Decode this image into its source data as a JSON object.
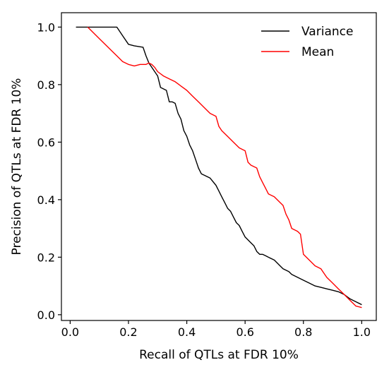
{
  "chart_data": {
    "type": "line",
    "title": "",
    "xlabel": "Recall of QTLs at FDR 10%",
    "ylabel": "Precision of QTLs at FDR 10%",
    "xlim": [
      -0.03,
      1.05
    ],
    "ylim": [
      -0.02,
      1.05
    ],
    "x_ticks": [
      0.0,
      0.2,
      0.4,
      0.6,
      0.8,
      1.0
    ],
    "y_ticks": [
      0.0,
      0.2,
      0.4,
      0.6,
      0.8,
      1.0
    ],
    "x_tick_labels": [
      "0.0",
      "0.2",
      "0.4",
      "0.6",
      "0.8",
      "1.0"
    ],
    "y_tick_labels": [
      "0.0",
      "0.2",
      "0.4",
      "0.6",
      "0.8",
      "1.0"
    ],
    "grid": false,
    "legend_position": "top-right",
    "series": [
      {
        "name": "Variance",
        "color": "#000000",
        "x": [
          0.02,
          0.16,
          0.18,
          0.2,
          0.22,
          0.25,
          0.26,
          0.27,
          0.28,
          0.3,
          0.31,
          0.33,
          0.34,
          0.35,
          0.36,
          0.37,
          0.38,
          0.39,
          0.4,
          0.41,
          0.42,
          0.43,
          0.44,
          0.45,
          0.46,
          0.47,
          0.48,
          0.5,
          0.51,
          0.52,
          0.53,
          0.54,
          0.55,
          0.56,
          0.57,
          0.58,
          0.59,
          0.6,
          0.61,
          0.62,
          0.63,
          0.64,
          0.65,
          0.66,
          0.67,
          0.68,
          0.7,
          0.71,
          0.72,
          0.73,
          0.74,
          0.75,
          0.76,
          0.78,
          0.8,
          0.82,
          0.84,
          0.86,
          0.88,
          0.9,
          0.92,
          0.94,
          0.96,
          0.98,
          1.0
        ],
        "y": [
          1.0,
          1.0,
          0.97,
          0.94,
          0.935,
          0.93,
          0.9,
          0.875,
          0.86,
          0.83,
          0.79,
          0.78,
          0.74,
          0.74,
          0.735,
          0.7,
          0.68,
          0.64,
          0.62,
          0.59,
          0.57,
          0.54,
          0.51,
          0.49,
          0.485,
          0.48,
          0.475,
          0.45,
          0.43,
          0.41,
          0.39,
          0.37,
          0.36,
          0.34,
          0.32,
          0.31,
          0.29,
          0.27,
          0.26,
          0.25,
          0.24,
          0.22,
          0.21,
          0.21,
          0.205,
          0.2,
          0.19,
          0.18,
          0.17,
          0.16,
          0.155,
          0.15,
          0.14,
          0.13,
          0.12,
          0.11,
          0.1,
          0.095,
          0.09,
          0.085,
          0.08,
          0.07,
          0.055,
          0.045,
          0.035
        ]
      },
      {
        "name": "Mean",
        "color": "#ff0000",
        "x": [
          0.06,
          0.1,
          0.14,
          0.16,
          0.18,
          0.2,
          0.22,
          0.24,
          0.26,
          0.27,
          0.28,
          0.29,
          0.3,
          0.32,
          0.34,
          0.36,
          0.38,
          0.4,
          0.42,
          0.44,
          0.46,
          0.48,
          0.5,
          0.51,
          0.52,
          0.54,
          0.56,
          0.58,
          0.6,
          0.61,
          0.62,
          0.64,
          0.65,
          0.66,
          0.67,
          0.68,
          0.7,
          0.72,
          0.73,
          0.74,
          0.75,
          0.76,
          0.78,
          0.79,
          0.8,
          0.82,
          0.84,
          0.86,
          0.88,
          0.9,
          0.92,
          0.94,
          0.96,
          0.98,
          1.0
        ],
        "y": [
          1.0,
          0.96,
          0.92,
          0.9,
          0.88,
          0.87,
          0.865,
          0.87,
          0.87,
          0.875,
          0.87,
          0.86,
          0.845,
          0.83,
          0.82,
          0.81,
          0.795,
          0.78,
          0.76,
          0.74,
          0.72,
          0.7,
          0.69,
          0.655,
          0.64,
          0.62,
          0.6,
          0.58,
          0.57,
          0.53,
          0.52,
          0.51,
          0.48,
          0.46,
          0.44,
          0.42,
          0.41,
          0.39,
          0.38,
          0.35,
          0.33,
          0.3,
          0.29,
          0.28,
          0.21,
          0.19,
          0.17,
          0.16,
          0.13,
          0.11,
          0.09,
          0.07,
          0.05,
          0.03,
          0.025
        ]
      }
    ]
  }
}
